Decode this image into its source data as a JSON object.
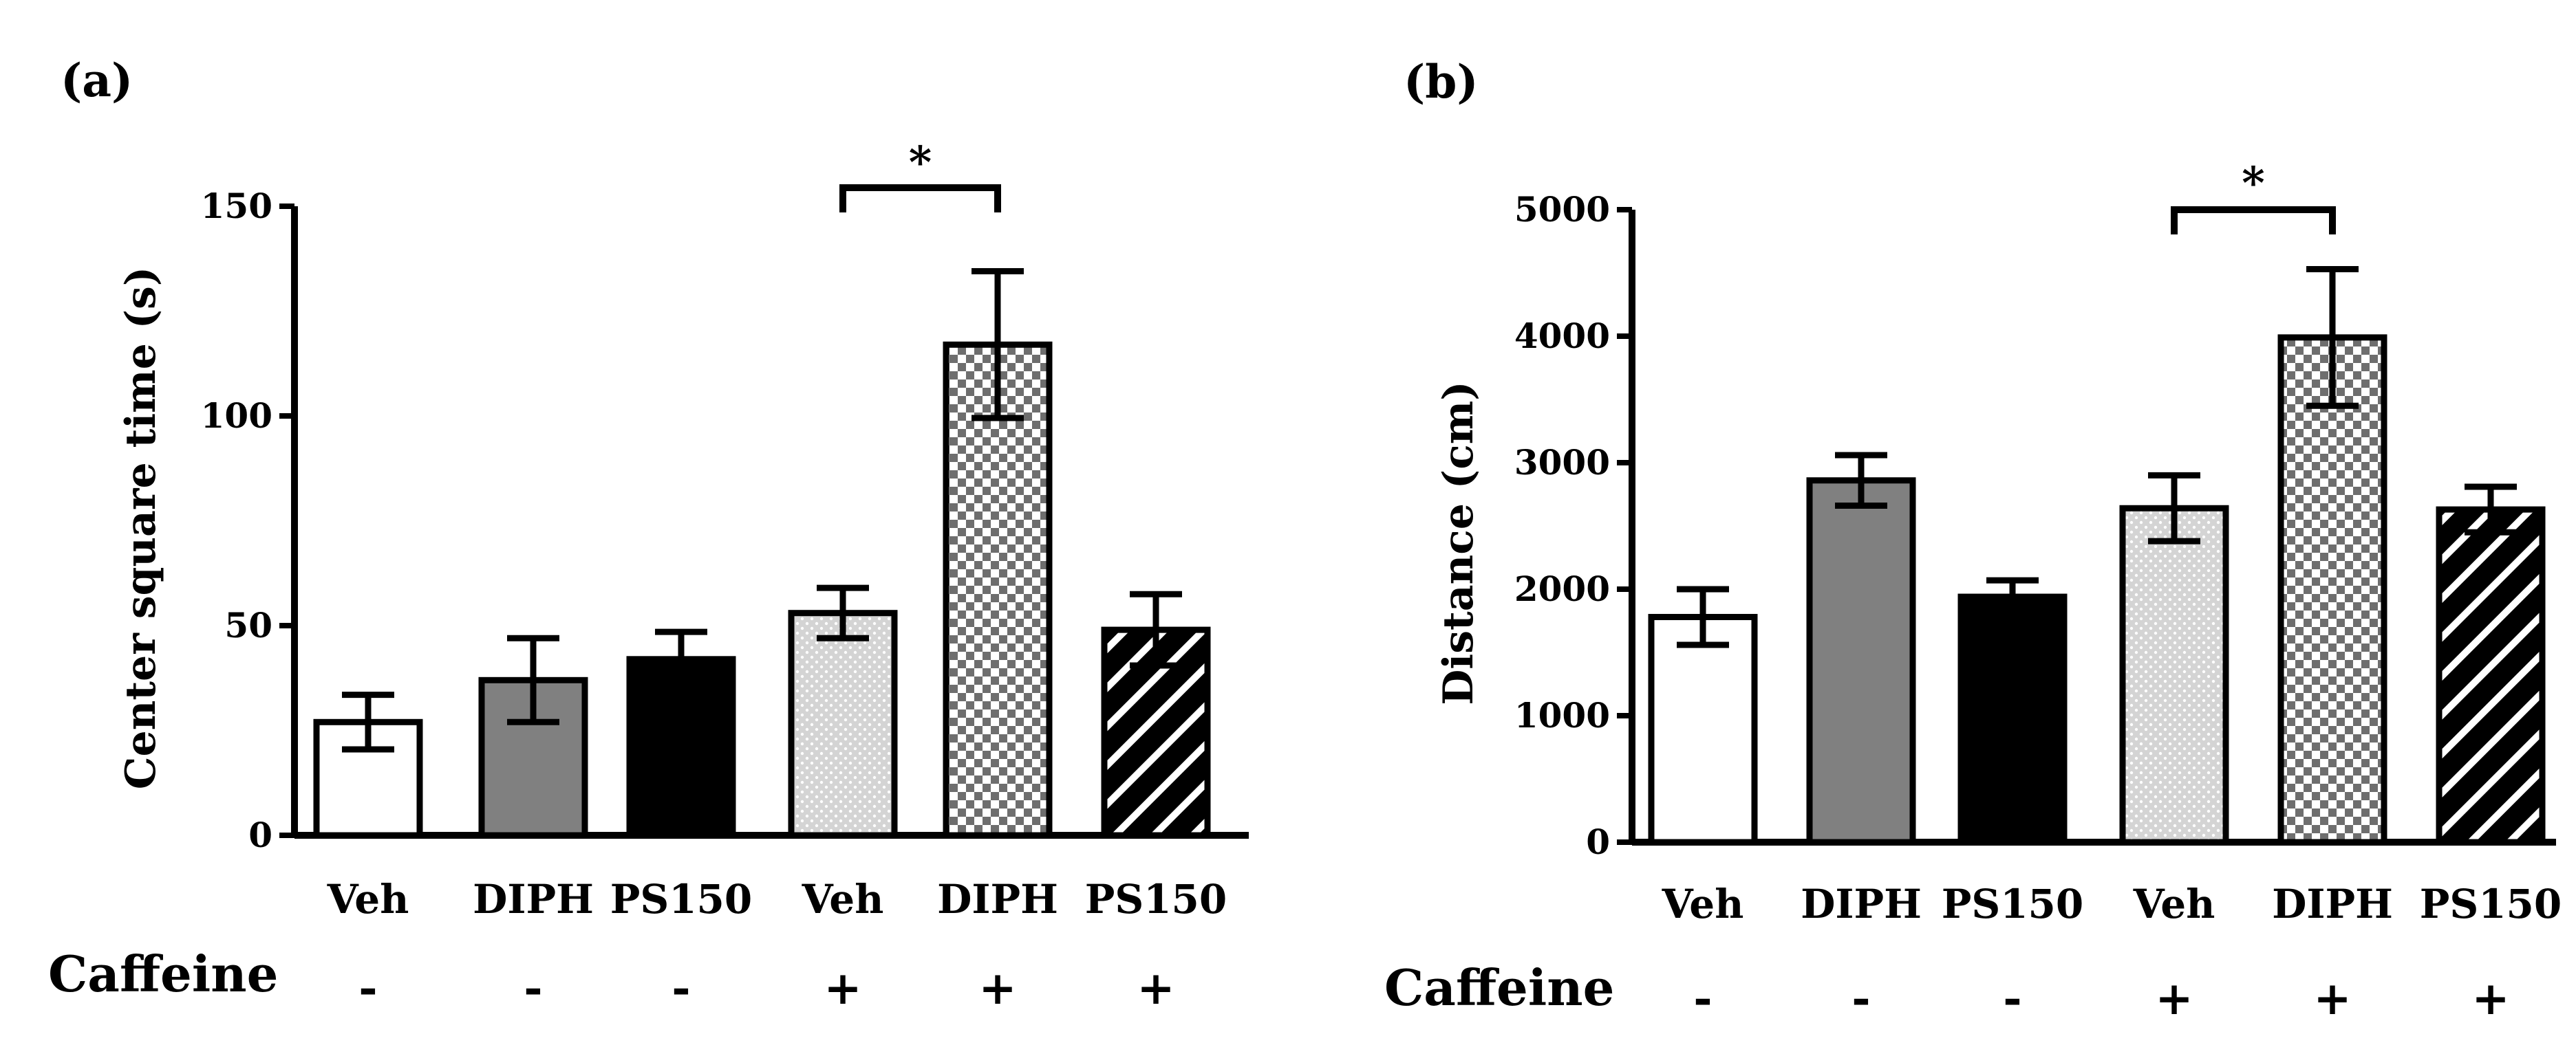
{
  "chart_data": [
    {
      "type": "bar",
      "panel_label": "(a)",
      "ylabel": "Center square time (s)",
      "ylim": [
        0,
        150
      ],
      "yticks": [
        0,
        50,
        100,
        150
      ],
      "categories": [
        "Veh",
        "DIPH",
        "PS150",
        "Veh",
        "DIPH",
        "PS150"
      ],
      "caffeine_label": "Caffeine",
      "caffeine": [
        "-",
        "-",
        "-",
        "+",
        "+",
        "+"
      ],
      "values": [
        27,
        37,
        42,
        53,
        117,
        49
      ],
      "errors": [
        6.5,
        10,
        6.5,
        6,
        17.5,
        8.5
      ],
      "patterns": [
        "white",
        "gray",
        "black",
        "dotted",
        "checker",
        "hatch"
      ],
      "significance": {
        "from": 3,
        "to": 4,
        "label": "*"
      }
    },
    {
      "type": "bar",
      "panel_label": "(b)",
      "ylabel": "Distance (cm)",
      "ylim": [
        0,
        5000
      ],
      "yticks": [
        0,
        1000,
        2000,
        3000,
        4000,
        5000
      ],
      "categories": [
        "Veh",
        "DIPH",
        "PS150",
        "Veh",
        "DIPH",
        "PS150"
      ],
      "caffeine_label": "Caffeine",
      "caffeine": [
        "-",
        "-",
        "-",
        "+",
        "+",
        "+"
      ],
      "values": [
        1780,
        2860,
        1940,
        2640,
        3990,
        2630
      ],
      "errors": [
        220,
        200,
        130,
        260,
        540,
        180
      ],
      "patterns": [
        "white",
        "gray",
        "black",
        "dotted",
        "checker",
        "hatch"
      ],
      "significance": {
        "from": 3,
        "to": 4,
        "label": "*"
      }
    }
  ]
}
